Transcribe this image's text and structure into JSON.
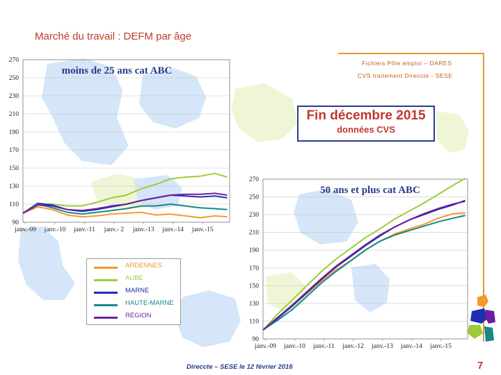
{
  "page": {
    "title": "Marché du travail : DEFM par âge",
    "source_line1": "Fichiers Pôle emploi – DARES",
    "source_line2": "CVS traitement Direccte - SESE",
    "date_line1": "Fin  décembre  2015",
    "date_line2": "données CVS",
    "footer": "Direccte – SESE le 12 février 2016",
    "page_number": "7"
  },
  "colors": {
    "ARDENNES": "#f39a2c",
    "AUBE": "#9ccc3a",
    "MARNE": "#1f2fb0",
    "HAUTE-MARNE": "#17888a",
    "RÉGION": "#6a1fa0",
    "accent_red": "#c0392b",
    "map_blue": "#d4e6f7",
    "map_green": "#eef6d6"
  },
  "legend": [
    {
      "name": "ARDENNES"
    },
    {
      "name": "AUBE"
    },
    {
      "name": "MARNE"
    },
    {
      "name": "HAUTE-MARNE"
    },
    {
      "name": "RÉGION"
    }
  ],
  "chart_data": [
    {
      "type": "line",
      "title": "moins  de 25 ans cat ABC",
      "x_tick_labels": [
        "janv.-09",
        "janv.-10",
        "janv.-11",
        "janv.- 2",
        "janv.-13",
        "janv.-14",
        "janv.-15"
      ],
      "y_ticks": [
        90,
        110,
        130,
        150,
        170,
        190,
        210,
        230,
        250,
        270
      ],
      "ylim": [
        90,
        270
      ],
      "x_months": [
        0,
        6,
        12,
        18,
        24,
        30,
        36,
        42,
        48,
        54,
        60,
        66,
        72,
        78,
        83
      ],
      "series": [
        {
          "name": "ARDENNES",
          "values": [
            100,
            107,
            104,
            98,
            96,
            97,
            99,
            100,
            101,
            98,
            99,
            97,
            95,
            97,
            96
          ]
        },
        {
          "name": "AUBE",
          "values": [
            100,
            110,
            110,
            108,
            108,
            112,
            117,
            120,
            127,
            132,
            138,
            140,
            141,
            144,
            140
          ]
        },
        {
          "name": "MARNE",
          "values": [
            100,
            111,
            109,
            104,
            102,
            104,
            107,
            110,
            114,
            117,
            120,
            119,
            118,
            119,
            117
          ]
        },
        {
          "name": "HAUTE-MARNE",
          "values": [
            100,
            110,
            106,
            101,
            99,
            101,
            103,
            105,
            108,
            108,
            110,
            108,
            106,
            105,
            104
          ]
        },
        {
          "name": "RÉGION",
          "values": [
            100,
            109,
            108,
            104,
            103,
            105,
            108,
            110,
            114,
            117,
            120,
            121,
            121,
            122,
            120
          ]
        }
      ]
    },
    {
      "type": "line",
      "title": "50 ans et plus cat ABC",
      "x_tick_labels": [
        "janv.-09",
        "janv.-10",
        "janv.-11",
        "janv.-12",
        "janv.-13",
        "janv.-14",
        "janv.-15"
      ],
      "y_ticks": [
        90,
        110,
        130,
        150,
        170,
        190,
        210,
        230,
        250,
        270
      ],
      "ylim": [
        90,
        270
      ],
      "x_months": [
        0,
        6,
        12,
        18,
        24,
        30,
        36,
        42,
        48,
        54,
        60,
        66,
        72,
        78,
        83
      ],
      "series": [
        {
          "name": "ARDENNES",
          "values": [
            100,
            114,
            128,
            141,
            155,
            168,
            178,
            190,
            200,
            208,
            214,
            219,
            226,
            231,
            232
          ]
        },
        {
          "name": "AUBE",
          "values": [
            100,
            118,
            134,
            150,
            166,
            180,
            192,
            204,
            214,
            225,
            234,
            243,
            253,
            263,
            271
          ]
        },
        {
          "name": "MARNE",
          "values": [
            100,
            113,
            127,
            142,
            157,
            171,
            183,
            195,
            206,
            216,
            224,
            230,
            236,
            241,
            246
          ]
        },
        {
          "name": "HAUTE-MARNE",
          "values": [
            100,
            111,
            123,
            138,
            153,
            166,
            178,
            190,
            200,
            207,
            212,
            217,
            222,
            226,
            229
          ]
        },
        {
          "name": "RÉGION",
          "values": [
            100,
            114,
            128,
            143,
            158,
            172,
            184,
            196,
            207,
            216,
            224,
            231,
            237,
            242,
            245
          ]
        }
      ]
    }
  ]
}
